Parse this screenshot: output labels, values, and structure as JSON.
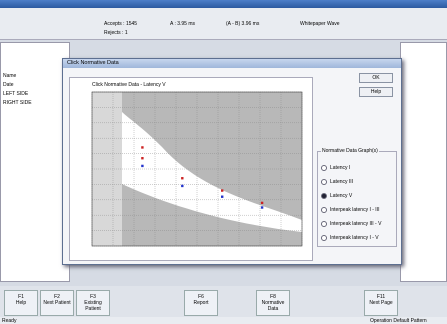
{
  "toolbar": {
    "accepts": "Accepts : 1545",
    "rejects": "Rejects : 1",
    "a_value": "A : 3.95 ms",
    "ab_value": "(A - B) 3.96 ms",
    "repeat": "Whitepaper Wave"
  },
  "tree": {
    "items": [
      "Name",
      "Date",
      "LEFT SIDE",
      "RIGHT SIDE"
    ]
  },
  "dialog": {
    "title": "Click Normative Data",
    "ok": "OK",
    "help": "Help",
    "group_title": "Normative Data Graph(s)",
    "options": [
      "Latency I",
      "Latency III",
      "Latency V",
      "Interpeak latency I - III",
      "Interpeak latency III - V",
      "Interpeak latency I - V"
    ],
    "selected": 2,
    "chart": {
      "title": "Click Normative Data - Latency V",
      "xlim": [
        0,
        10
      ],
      "ylim": [
        0,
        10
      ],
      "series": [
        {
          "color": "#cc2222",
          "x": [
            2.4,
            2.4,
            4.3,
            6.2,
            8.1
          ],
          "values": [
            6.4,
            5.7,
            4.4,
            3.6,
            2.8
          ]
        },
        {
          "color": "#2233cc",
          "x": [
            2.4,
            4.3,
            6.2,
            8.1
          ],
          "values": [
            5.2,
            3.9,
            3.2,
            2.5
          ]
        }
      ]
    }
  },
  "fkeys": [
    [
      "F1",
      "Help"
    ],
    [
      "F2",
      "Next Patient"
    ],
    [
      "F3",
      "Existing Patient"
    ],
    [
      "F6",
      "Report"
    ],
    [
      "F8",
      "Normative Data"
    ],
    [
      "F11",
      "Next Page"
    ]
  ],
  "status": {
    "left": "Ready",
    "right": "Operation Default Pattern"
  }
}
